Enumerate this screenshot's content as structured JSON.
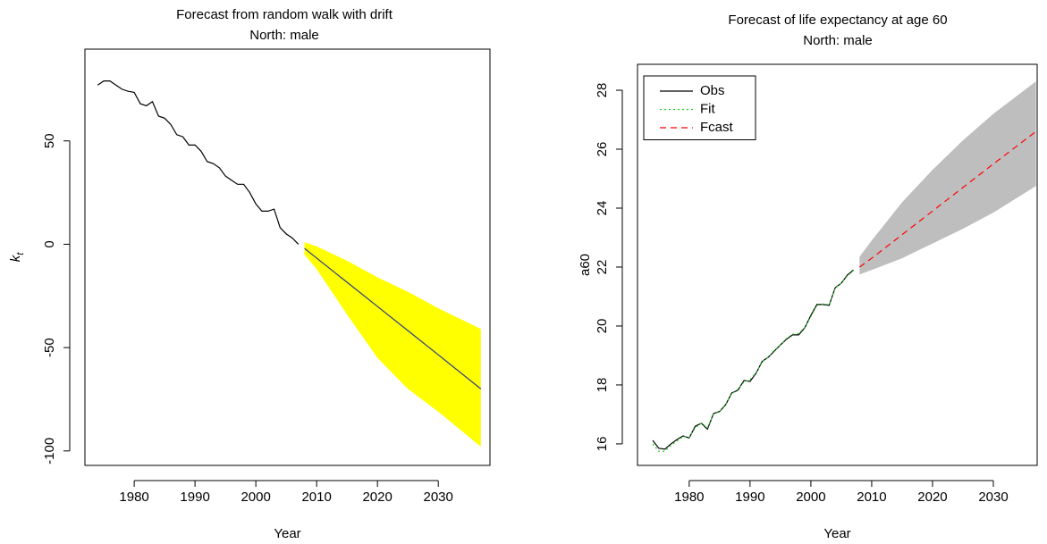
{
  "chart_data": [
    {
      "type": "line",
      "title": "Forecast from random walk with drift",
      "subtitle": "North: male",
      "xlabel": "Year",
      "ylabel": "k",
      "ylabel_sub": "t",
      "xlim": [
        1971.9,
        2038.5
      ],
      "ylim": [
        -107,
        94.4
      ],
      "xticks": [
        1980,
        1990,
        2000,
        2010,
        2020,
        2030
      ],
      "yticks": [
        -100,
        -50,
        0,
        50
      ],
      "bands": [
        {
          "color": "#ffff00",
          "x": [
            2008,
            2010,
            2015,
            2020,
            2025,
            2030,
            2037
          ],
          "upper": [
            1,
            -1,
            -8,
            -16,
            -23,
            -31,
            -41
          ],
          "lower": [
            -5,
            -12,
            -34,
            -55,
            -70,
            -81,
            -98
          ]
        }
      ],
      "series": [
        {
          "color": "#000000",
          "linestyle": "solid",
          "x": [
            1974,
            1975,
            1976,
            1977,
            1978,
            1979,
            1980,
            1981,
            1982,
            1983,
            1984,
            1985,
            1986,
            1987,
            1988,
            1989,
            1990,
            1991,
            1992,
            1993,
            1994,
            1995,
            1996,
            1997,
            1998,
            1999,
            2000,
            2001,
            2002,
            2003,
            2004,
            2005,
            2006,
            2007
          ],
          "values": [
            77,
            79,
            79,
            77,
            75,
            74,
            73.5,
            68,
            67,
            69,
            62,
            61,
            58,
            53,
            52,
            48,
            48,
            45,
            40,
            39,
            37,
            33,
            31,
            29,
            29,
            25,
            19.5,
            16,
            16,
            17,
            8,
            5,
            3,
            0
          ]
        },
        {
          "color": "#2b3a8c",
          "linestyle": "solid",
          "x": [
            2008,
            2010,
            2015,
            2020,
            2025,
            2030,
            2037
          ],
          "values": [
            -2,
            -6.7,
            -18.4,
            -30.1,
            -41.8,
            -53.5,
            -70
          ]
        }
      ]
    },
    {
      "type": "line",
      "title": "Forecast of life expectancy at age 60",
      "subtitle": "North: male",
      "xlabel": "Year",
      "ylabel": "a60",
      "xlim": [
        1971.5,
        2037.2
      ],
      "ylim": [
        15.27,
        28.88
      ],
      "xticks": [
        1980,
        1990,
        2000,
        2010,
        2020,
        2030
      ],
      "yticks": [
        16,
        18,
        20,
        22,
        24,
        26,
        28
      ],
      "legend": "top-left",
      "bands": [
        {
          "color": "#bebebe",
          "x": [
            2008,
            2010,
            2015,
            2020,
            2025,
            2030,
            2037
          ],
          "upper": [
            22.35,
            22.9,
            24.2,
            25.3,
            26.3,
            27.2,
            28.3
          ],
          "lower": [
            21.75,
            21.9,
            22.3,
            22.8,
            23.3,
            23.85,
            24.75
          ]
        }
      ],
      "series": [
        {
          "name": "Obs",
          "color": "#000000",
          "linestyle": "solid",
          "x": [
            1974,
            1975,
            1976,
            1977,
            1978,
            1979,
            1980,
            1981,
            1982,
            1983,
            1984,
            1985,
            1986,
            1987,
            1988,
            1989,
            1990,
            1991,
            1992,
            1993,
            1994,
            1995,
            1996,
            1997,
            1998,
            1999,
            2000,
            2001,
            2002,
            2003,
            2004,
            2005,
            2006,
            2007
          ],
          "values": [
            16.12,
            15.85,
            15.82,
            16.0,
            16.15,
            16.27,
            16.2,
            16.6,
            16.7,
            16.5,
            17.03,
            17.1,
            17.33,
            17.73,
            17.82,
            18.15,
            18.12,
            18.4,
            18.8,
            18.94,
            19.15,
            19.36,
            19.55,
            19.7,
            19.7,
            19.94,
            20.36,
            20.73,
            20.73,
            20.7,
            21.3,
            21.45,
            21.73,
            21.9
          ]
        },
        {
          "name": "Fit",
          "color": "#22cc22",
          "linestyle": "dotted",
          "x": [
            1974,
            1975,
            1976,
            1977,
            1978,
            1979,
            1980,
            1981,
            1982,
            1983,
            1984,
            1985,
            1986,
            1987,
            1988,
            1989,
            1990,
            1991,
            1992,
            1993,
            1994,
            1995,
            1996,
            1997,
            1998,
            1999,
            2000,
            2001,
            2002,
            2003,
            2004,
            2005,
            2006,
            2007
          ],
          "values": [
            16.0,
            15.75,
            15.75,
            15.95,
            16.1,
            16.25,
            16.22,
            16.55,
            16.7,
            16.55,
            17.0,
            17.1,
            17.35,
            17.7,
            17.85,
            18.1,
            18.18,
            18.42,
            18.78,
            18.95,
            19.18,
            19.35,
            19.58,
            19.72,
            19.75,
            19.95,
            20.32,
            20.7,
            20.75,
            20.72,
            21.28,
            21.45,
            21.7,
            21.88
          ]
        },
        {
          "name": "Fcast",
          "color": "#ff0000",
          "linestyle": "dashed",
          "x": [
            2008,
            2010,
            2015,
            2020,
            2025,
            2030,
            2037
          ],
          "values": [
            22.0,
            22.3,
            23.1,
            23.9,
            24.7,
            25.5,
            26.6
          ]
        }
      ]
    }
  ]
}
